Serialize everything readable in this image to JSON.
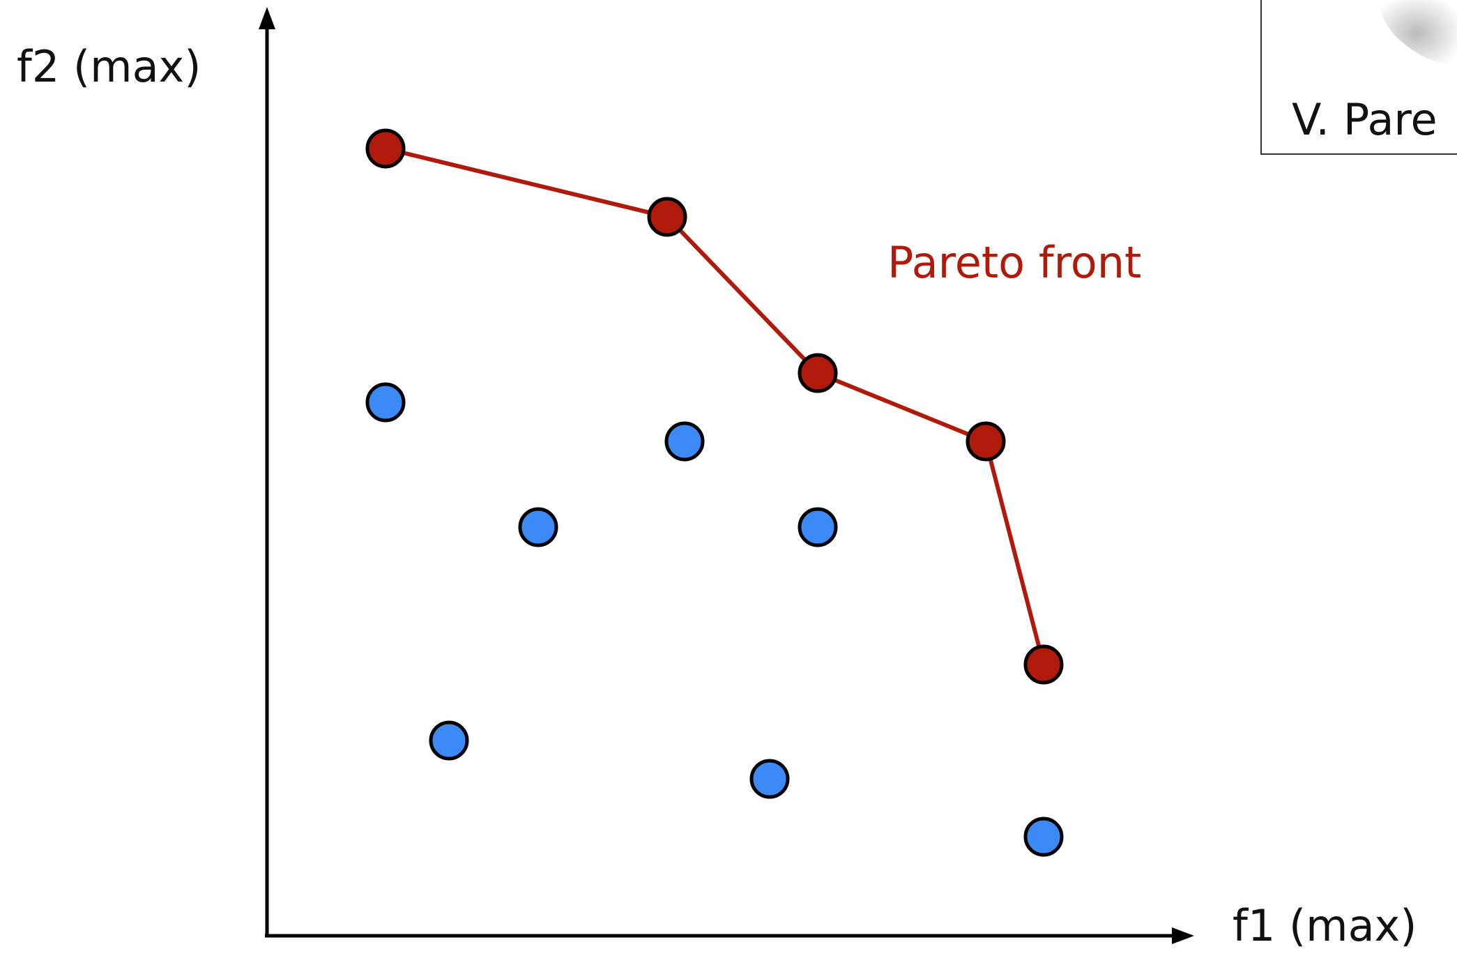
{
  "axes": {
    "y_label": "f2 (max)",
    "x_label": "f1 (max)"
  },
  "annotation": "Pareto front",
  "inset": {
    "caption": "V. Pare"
  }
}
